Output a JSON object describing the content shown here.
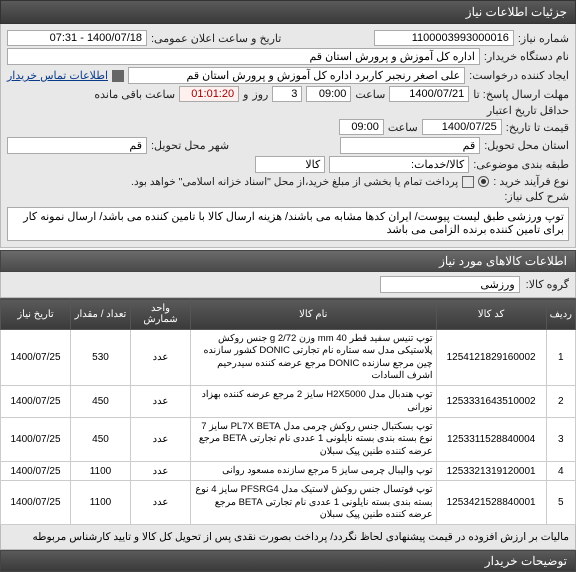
{
  "panel_title": "جزئیات اطلاعات نیاز",
  "fields": {
    "need_no_lbl": "شماره نیاز:",
    "need_no": "1100003993000016",
    "announce_lbl": "تاریخ و ساعت اعلان عمومی:",
    "announce": "1400/07/18 - 07:31",
    "buyer_device_lbl": "نام دستگاه خریدار:",
    "buyer_device": "اداره کل آموزش و پرورش استان قم",
    "request_creator_lbl": "ایجاد کننده درخواست:",
    "request_creator": "علی اصغر رنجبر کاربرد اداره کل آموزش و پرورش استان قم",
    "contact_link": "اطلاعات تماس خریدار",
    "deadline_send_lbl": "مهلت ارسال پاسخ: تا",
    "deadline_date": "1400/07/21",
    "time_lbl": "ساعت",
    "deadline_time": "09:00",
    "round_lbl": "روز",
    "round_val": "3",
    "and_lbl": "و",
    "remain": "01:01:20",
    "remain_suffix": "ساعت باقی مانده",
    "expire_lbl": "حداقل تاریخ اعتبار",
    "expire_sub": "قیمت تا تاریخ:",
    "expire_date": "1400/07/25",
    "expire_time": "09:00",
    "province_lbl": "استان محل تحویل:",
    "province": "قم",
    "city_lbl": "شهر محل تحویل:",
    "city": "قم",
    "willing_lbl": "طبقه بندی موضوعی:",
    "willing_opt": "کالا/خدمات:",
    "willing_val": "کالا",
    "goods_lbl": "نوع فرآیند خرید :",
    "radio1": "پرداخت تمام یا بخشی از مبلغ خرید،از محل \"اسناد خزانه اسلامی\" خواهد بود.",
    "desc_lbl": "شرح کلی نیاز:",
    "desc_text": "توپ ورزشی طبق لیست پیوست/ ایران کدها مشابه می باشند/ هزینه ارسال کالا با تامین کننده می باشد/ ارسال نمونه کار برای تامین کننده برنده الزامی می باشد"
  },
  "section2_title": "اطلاعات کالاهای مورد نیاز",
  "group_lbl": "گروه کالا:",
  "group_val": "ورزشی",
  "table": {
    "headers": [
      "ردیف",
      "کد کالا",
      "نام کالا",
      "واحد شمارش",
      "تعداد / مقدار",
      "تاریخ نیاز"
    ],
    "col_widths": [
      "28px",
      "110px",
      "auto",
      "60px",
      "60px",
      "70px"
    ],
    "rows": [
      {
        "n": "1",
        "code": "1254121829160002",
        "name": "توپ تنیس سفید قطر 40 mm وزن 2/72 g جنس روکش پلاستیکی مدل سه ستاره نام تجارتی DONIC کشور سازنده چین مرجع سازنده DONIC مرجع عرضه کننده سیدرحیم اشرف السادات",
        "unit": "عدد",
        "qty": "530",
        "date": "1400/07/25"
      },
      {
        "n": "2",
        "code": "1253331643510002",
        "name": "توپ هندبال مدل H2X5000 سایز 2 مرجع عرضه کننده بهزاد نورانی",
        "unit": "عدد",
        "qty": "450",
        "date": "1400/07/25"
      },
      {
        "n": "3",
        "code": "1253311528840004",
        "name": "توپ بسکتبال جنس روکش چرمی مدل PL7X BETA سایز 7 نوع بسته بندی بسته نایلونی 1 عددی نام تجارتی BETA مرجع عرضه کننده طنین پیک سبلان",
        "unit": "عدد",
        "qty": "450",
        "date": "1400/07/25"
      },
      {
        "n": "4",
        "code": "1253321319120001",
        "name": "توپ والیبال چرمی سایز 5 مرجع سازنده مسعود روانی",
        "unit": "عدد",
        "qty": "1100",
        "date": "1400/07/25"
      },
      {
        "n": "5",
        "code": "1253421528840001",
        "name": "توپ فوتسال جنس روکش لاستیک مدل PFSRG4 سایز 4 نوع بسته بندی بسته نایلونی 1 عددی نام تجارتی BETA مرجع عرضه کننده طنین پیک سبلان",
        "unit": "عدد",
        "qty": "1100",
        "date": "1400/07/25"
      }
    ]
  },
  "footer_note": "مالیات بر ارزش افزوده در قیمت پیشنهادی لحاظ نگردد/ پرداخت بصورت نقدی پس از تحویل کل کالا و تایید کارشناس مربوطه",
  "bottom_bar": "توضیحات خریدار"
}
